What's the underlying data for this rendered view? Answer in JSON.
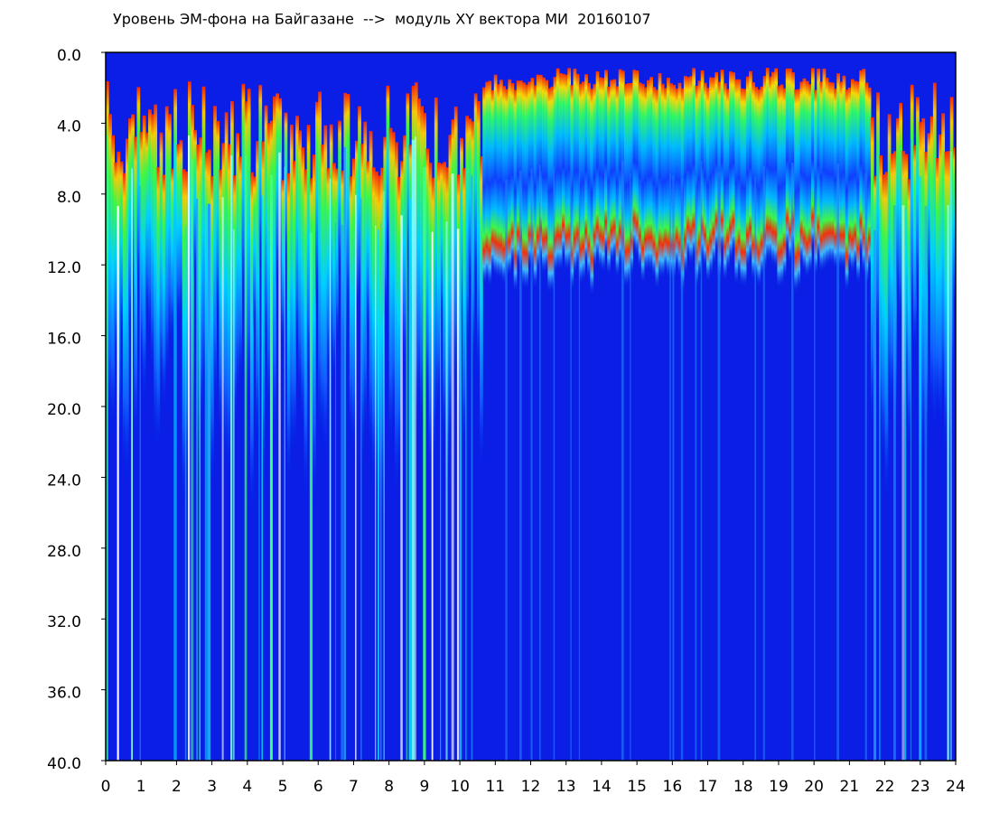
{
  "chart_data": {
    "type": "heatmap",
    "title": "Уровень ЭМ-фона на Байгазане  -->  модуль XY вектора МИ  20160107",
    "xlim": [
      0,
      24
    ],
    "xticks": [
      0,
      1,
      2,
      3,
      4,
      5,
      6,
      7,
      8,
      9,
      10,
      11,
      12,
      13,
      14,
      15,
      16,
      17,
      18,
      19,
      20,
      21,
      22,
      23,
      24
    ],
    "ylim": [
      0,
      40
    ],
    "invert_y": true,
    "yticks": [
      {
        "value": 0,
        "label": "0.0"
      },
      {
        "value": 4,
        "label": "4.0"
      },
      {
        "value": 8,
        "label": "8.0"
      },
      {
        "value": 12,
        "label": "12.0"
      },
      {
        "value": 16,
        "label": "16.0"
      },
      {
        "value": 20,
        "label": "20.0"
      },
      {
        "value": 24,
        "label": "24.0"
      },
      {
        "value": 28,
        "label": "28.0"
      },
      {
        "value": 32,
        "label": "32.0"
      },
      {
        "value": 36,
        "label": "36.0"
      },
      {
        "value": 40,
        "label": "40.0"
      }
    ]
  }
}
